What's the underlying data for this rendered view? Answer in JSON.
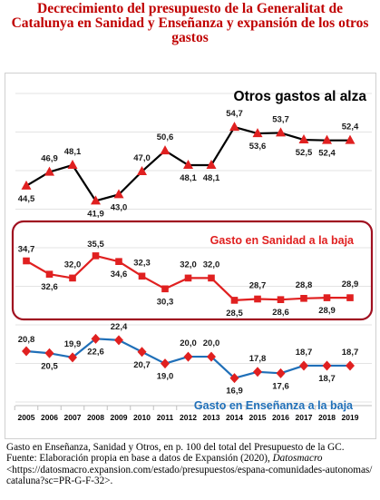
{
  "title": "Decrecimiento del presupuesto de la Generalitat de Catalunya en Sanidad y Enseñanza y expansión de los otros gastos",
  "chart_data": {
    "type": "line",
    "categories": [
      "2005",
      "2006",
      "2007",
      "2008",
      "2009",
      "2010",
      "2011",
      "2012",
      "2013",
      "2014",
      "2015",
      "2016",
      "2017",
      "2018",
      "2019"
    ],
    "series": [
      {
        "name": "Otros gastos al alza",
        "values": [
          44.5,
          46.9,
          48.1,
          41.9,
          43.0,
          47.0,
          50.6,
          48.1,
          48.1,
          54.7,
          53.6,
          53.7,
          52.5,
          52.4,
          52.4
        ],
        "labels": [
          "44,5",
          "46,9",
          "48,1",
          "41,9",
          "43,0",
          "47,0",
          "50,6",
          "48,1",
          "48,1",
          "54,7",
          "53,6",
          "53,7",
          "52,5",
          "52,4",
          "52,4"
        ],
        "color": "#000000",
        "marker_color": "#e02020",
        "marker": "triangle"
      },
      {
        "name": "Gasto en Sanidad a la baja",
        "values": [
          34.7,
          32.6,
          32.0,
          35.5,
          34.6,
          32.3,
          30.3,
          32.0,
          32.0,
          28.5,
          28.7,
          28.6,
          28.8,
          28.9,
          28.9
        ],
        "labels": [
          "34,7",
          "32,6",
          "32,0",
          "35,5",
          "34,6",
          "32,3",
          "30,3",
          "32,0",
          "32,0",
          "28,5",
          "28,7",
          "28,6",
          "28,8",
          "28,9",
          "28,9"
        ],
        "color": "#e02020",
        "marker_color": "#e02020",
        "marker": "square"
      },
      {
        "name": "Gasto en Enseñanza a la baja",
        "values": [
          20.8,
          20.5,
          19.9,
          22.6,
          22.4,
          20.7,
          19.0,
          20.0,
          20.0,
          16.9,
          17.8,
          17.6,
          18.7,
          18.7,
          18.7
        ],
        "labels": [
          "20,8",
          "20,5",
          "19,9",
          "22,6",
          "22,4",
          "20,7",
          "19,0",
          "20,0",
          "20,0",
          "16,9",
          "17,8",
          "17,6",
          "18,7",
          "18,7",
          "18,7"
        ],
        "color": "#1f6fb8",
        "marker_color": "#e02020",
        "marker": "diamond"
      }
    ],
    "colors": {
      "otros_title": "#000000",
      "sanidad_title": "#e02020",
      "ensenanza_title": "#1f6fb8",
      "box_border": "#a01020"
    },
    "grid": "horizontal"
  },
  "caption": {
    "line1": "Gasto en Enseñanza, Sanidad y Otros, en p. 100 del total del Presupuesto de la GC.",
    "line2_prefix": "Fuente: Elaboración propia en base a datos de Expansión (2020), ",
    "line2_source": "Datosmacro",
    "line3": "<https://datosmacro.expansion.com/estado/presupuestos/espana-comunidades-autonomas/cataluna?sc=PR-G-F-32>."
  }
}
